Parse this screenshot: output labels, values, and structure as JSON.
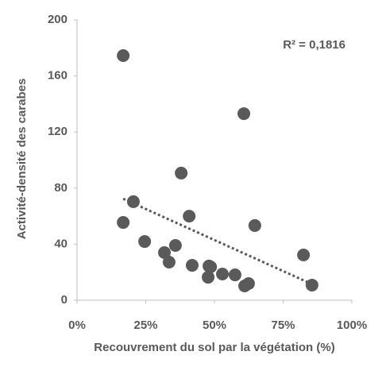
{
  "chart_data": {
    "type": "scatter",
    "ylabel": "Activité-densité des carabes",
    "xlabel": "Recouvrement du sol par la végétation (%)",
    "annotation": "R² = 0,1816",
    "color": "#5a5a5a",
    "trendline": true,
    "x": [
      16.8,
      16.8,
      20.5,
      24.6,
      31.8,
      33.5,
      35.8,
      37.9,
      40.8,
      41.9,
      48,
      48.6,
      47.7,
      52.9,
      57.5,
      60.7,
      61,
      62.4,
      64.7,
      82.4,
      85.5
    ],
    "values": [
      174.5,
      55.5,
      70.3,
      41.9,
      34,
      27.2,
      39.1,
      90.7,
      60,
      24.9,
      24.4,
      23.8,
      16.4,
      18.7,
      18.1,
      133.1,
      10.2,
      11.9,
      53.3,
      32.3,
      10.8
    ],
    "xlim": [
      0,
      100
    ],
    "xticks": [
      {
        "value": 0,
        "label": "0%"
      },
      {
        "value": 25,
        "label": "25%"
      },
      {
        "value": 50,
        "label": "50%"
      },
      {
        "value": 75,
        "label": "75%"
      },
      {
        "value": 100,
        "label": "100%"
      }
    ],
    "ylim": [
      0,
      200
    ],
    "yticks": [
      0,
      40,
      80,
      120,
      160,
      200
    ]
  }
}
